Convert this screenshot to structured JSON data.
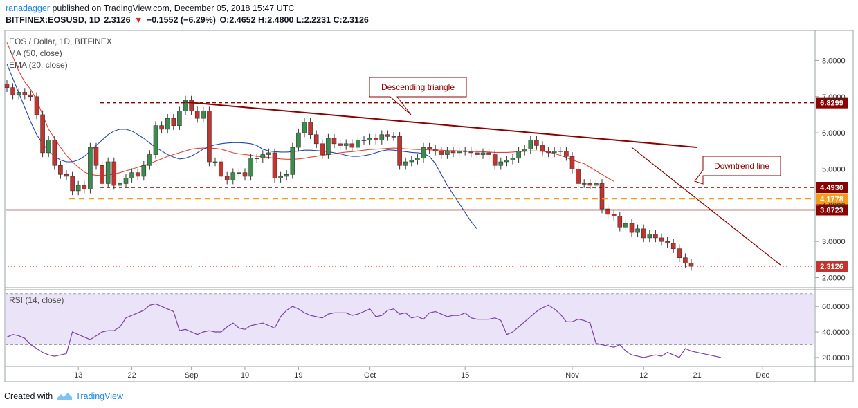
{
  "header": {
    "author": "ranadagger",
    "published_text": "published on TradingView.com, December 05, 2018 15:47 UTC",
    "symbol": "BITFINEX:EOSUSD, 1D",
    "last": "2.3126",
    "change": "−0.1552 (−6.29%)",
    "ohlc": "O:2.4652 H:2.4800 L:2.2231 C:2.3126"
  },
  "legend": {
    "title": "EOS / Dollar, 1D, BITFINEX",
    "ma": "MA (50, close)",
    "ema": "EMA (20, close)",
    "rsi": "RSI (14, close)"
  },
  "footer": {
    "created_with": "Created with",
    "brand": "TradingView"
  },
  "colors": {
    "up": "#3c8c4e",
    "down": "#c5332f",
    "ma": "#e0423a",
    "ema": "#2447a8",
    "level": "#8b0000",
    "dashed_orange": "#f59b1c",
    "rsi_line": "#7b3fa6",
    "rsi_band": "#ebe3f7",
    "callout_border": "#8b0000"
  },
  "chart_data": [
    {
      "type": "candlestick",
      "title": "EOS / Dollar, 1D, BITFINEX",
      "ylim": [
        1.8,
        8.6
      ],
      "yticks": [
        "2.0000",
        "3.0000",
        "4.0000",
        "5.0000",
        "6.0000",
        "7.0000",
        "8.0000"
      ],
      "xticks": [
        "13",
        "22",
        "Sep",
        "10",
        "19",
        "Oct",
        "15",
        "Nov",
        "12",
        "21",
        "Dec"
      ],
      "xtick_bar_index": [
        12,
        21,
        31,
        40,
        49,
        61,
        77,
        95,
        107,
        116,
        127
      ],
      "price_labels": [
        {
          "label": "6.8299",
          "value": 6.8299,
          "style": "dashed"
        },
        {
          "label": "4.4930",
          "value": 4.493,
          "style": "dashed"
        },
        {
          "label": "4.1778",
          "value": 4.1778,
          "style": "dashed-orange"
        },
        {
          "label": "3.8723",
          "value": 3.8723,
          "style": "solid"
        },
        {
          "label": "2.3126",
          "value": 2.3126,
          "style": "dotted"
        }
      ],
      "annotations": [
        {
          "text": "Descending triangle",
          "type": "callout"
        },
        {
          "text": "Downtrend line",
          "type": "callout"
        }
      ],
      "trendlines": [
        {
          "name": "triangle-top",
          "from": {
            "bar": 30,
            "value": 6.85
          },
          "to": {
            "bar": 116,
            "value": 5.6
          }
        },
        {
          "name": "downtrend",
          "from": {
            "bar": 105,
            "value": 5.6
          },
          "to": {
            "bar": 130,
            "value": 2.35
          }
        }
      ],
      "close": [
        7.25,
        7.05,
        7.12,
        7.05,
        7.0,
        6.5,
        5.45,
        5.8,
        5.1,
        4.85,
        4.8,
        4.4,
        4.55,
        4.45,
        5.6,
        5.1,
        4.6,
        5.2,
        4.55,
        4.6,
        4.75,
        4.9,
        4.8,
        5.1,
        5.4,
        6.2,
        6.1,
        6.4,
        6.2,
        6.6,
        6.9,
        6.6,
        6.4,
        6.6,
        5.2,
        5.2,
        4.8,
        4.7,
        4.9,
        4.9,
        4.8,
        5.3,
        5.3,
        5.4,
        5.45,
        4.75,
        4.8,
        4.85,
        5.6,
        6.0,
        6.3,
        5.95,
        5.7,
        5.4,
        5.85,
        5.7,
        5.65,
        5.7,
        5.6,
        5.8,
        5.8,
        5.85,
        5.8,
        5.95,
        5.9,
        5.9,
        5.1,
        5.2,
        5.25,
        5.3,
        5.6,
        5.55,
        5.5,
        5.4,
        5.5,
        5.45,
        5.5,
        5.5,
        5.45,
        5.4,
        5.45,
        5.4,
        5.1,
        5.2,
        5.25,
        5.3,
        5.5,
        5.55,
        5.8,
        5.65,
        5.5,
        5.45,
        5.5,
        5.5,
        5.35,
        5.0,
        4.6,
        4.6,
        4.55,
        4.6,
        3.9,
        3.75,
        3.7,
        3.4,
        3.5,
        3.25,
        3.35,
        3.1,
        3.2,
        3.1,
        3.0,
        2.95,
        2.8,
        2.55,
        2.4,
        2.3126
      ],
      "ma50": [
        8.5,
        8.1,
        7.7,
        7.4,
        7.2,
        6.9,
        6.5,
        6.1,
        5.85,
        5.6,
        5.38,
        5.2,
        5.05,
        4.92,
        4.85,
        4.83,
        4.82,
        4.84,
        4.86,
        4.9,
        4.95,
        5.0,
        5.05,
        5.1,
        5.15,
        5.22,
        5.28,
        5.35,
        5.4,
        5.45,
        5.5,
        5.55,
        5.57,
        5.58,
        5.58,
        5.57,
        5.55,
        5.5,
        5.45,
        5.42,
        5.4,
        5.38,
        5.35,
        5.34,
        5.32,
        5.3,
        5.28,
        5.27,
        5.27,
        5.28,
        5.3,
        5.33,
        5.35,
        5.38,
        5.4,
        5.42,
        5.45,
        5.47,
        5.48,
        5.5,
        5.52,
        5.54,
        5.55,
        5.56,
        5.57,
        5.58,
        5.57,
        5.56,
        5.55,
        5.54,
        5.54,
        5.53,
        5.52,
        5.52,
        5.51,
        5.51,
        5.5,
        5.5,
        5.49,
        5.48,
        5.48,
        5.47,
        5.46,
        5.46,
        5.46,
        5.47,
        5.48,
        5.49,
        5.5,
        5.5,
        5.49,
        5.47,
        5.43,
        5.38,
        5.32,
        5.25,
        5.2,
        5.15,
        5.05,
        4.95,
        4.85,
        4.75,
        4.66
      ],
      "ema20": [
        7.9,
        7.5,
        7.1,
        6.7,
        6.3,
        5.95,
        5.7,
        5.5,
        5.35,
        5.25,
        5.2,
        5.2,
        5.25,
        5.35,
        5.5,
        5.65,
        5.8,
        5.95,
        6.05,
        6.1,
        6.1,
        6.05,
        5.95,
        5.85,
        5.72,
        5.6,
        5.5,
        5.4,
        5.33,
        5.28,
        5.3,
        5.36,
        5.45,
        5.55,
        5.62,
        5.67,
        5.7,
        5.72,
        5.73,
        5.73,
        5.72,
        5.7,
        5.65,
        5.55,
        5.5,
        5.48,
        5.47,
        5.47,
        5.48,
        5.5,
        5.52,
        5.52,
        5.51,
        5.5,
        5.48,
        5.45,
        5.42,
        5.38,
        5.35,
        5.35,
        5.37,
        5.4,
        5.45,
        5.5,
        5.53,
        5.52,
        5.5,
        5.48,
        5.46,
        5.45,
        5.43,
        5.35,
        5.15,
        4.85,
        4.55,
        4.3,
        4.05,
        3.8,
        3.55,
        3.35
      ]
    },
    {
      "type": "line",
      "title": "RSI (14, close)",
      "ylim": [
        14,
        72
      ],
      "yticks": [
        "20.0000",
        "40.0000",
        "60.0000"
      ],
      "bands": [
        30,
        70
      ],
      "values": [
        36,
        38,
        37,
        35,
        30,
        27,
        24,
        22,
        21,
        22,
        23,
        40,
        38,
        36,
        34,
        37,
        40,
        41,
        41,
        44,
        51,
        53,
        55,
        57,
        61,
        62,
        60,
        58,
        56,
        41,
        42,
        40,
        38,
        40,
        41,
        40,
        40,
        44,
        47,
        43,
        42,
        45,
        46,
        47,
        45,
        43,
        52,
        57,
        60,
        58,
        55,
        53,
        52,
        51,
        54,
        55,
        55,
        55,
        53,
        54,
        56,
        58,
        52,
        53,
        57,
        58,
        54,
        55,
        51,
        52,
        50,
        55,
        56,
        54,
        52,
        53,
        53,
        55,
        51,
        50,
        50,
        50,
        51,
        49,
        38,
        40,
        44,
        48,
        52,
        56,
        59,
        61,
        58,
        54,
        48,
        48,
        50,
        49,
        47,
        31,
        30,
        29,
        28,
        30,
        25,
        22,
        21,
        20,
        21,
        22,
        21,
        24,
        22,
        20,
        27,
        25,
        24,
        23,
        22,
        21,
        20
      ]
    }
  ]
}
